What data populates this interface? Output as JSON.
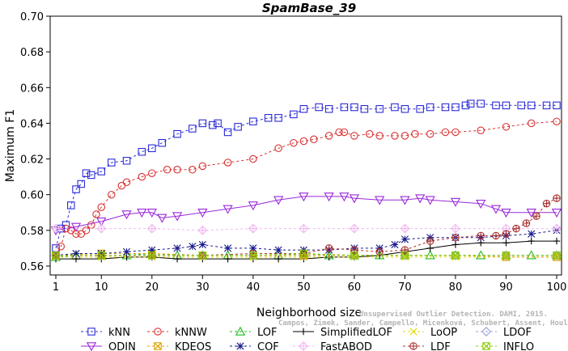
{
  "chart_data": {
    "type": "line",
    "title": "SpamBase_39",
    "xlabel": "Neighborhood size",
    "ylabel": "Maximum F1",
    "xlim": [
      1,
      100
    ],
    "ylim": [
      0.555,
      0.7
    ],
    "x_ticks": [
      1,
      10,
      20,
      30,
      40,
      50,
      60,
      70,
      80,
      90,
      100
    ],
    "y_ticks": [
      0.56,
      0.58,
      0.6,
      0.62,
      0.64,
      0.66,
      0.68,
      0.7
    ],
    "y_tick_labels": [
      "0.56",
      "0.58",
      "0.60",
      "0.62",
      "0.64",
      "0.66",
      "0.68",
      "0.70"
    ],
    "grid": false,
    "legend_position": "bottom",
    "watermark": [
      "Unsupervised Outlier Detection. DAMI, 2015.",
      "Campos, Zimek, Sander, Campello, Micenková, Schubert, Assent, Houle"
    ],
    "series": [
      {
        "name": "kNN",
        "color": "#2b2bd9",
        "marker": "square",
        "dash": "3,3",
        "x": [
          1,
          2,
          3,
          4,
          5,
          6,
          7,
          8,
          10,
          12,
          15,
          18,
          20,
          22,
          25,
          28,
          30,
          32,
          33,
          35,
          37,
          40,
          43,
          45,
          48,
          50,
          53,
          55,
          58,
          60,
          62,
          65,
          68,
          70,
          73,
          75,
          78,
          80,
          82,
          83,
          85,
          88,
          90,
          93,
          95,
          98,
          100
        ],
        "y": [
          0.57,
          0.581,
          0.583,
          0.594,
          0.603,
          0.606,
          0.612,
          0.611,
          0.613,
          0.618,
          0.619,
          0.624,
          0.626,
          0.629,
          0.634,
          0.637,
          0.64,
          0.639,
          0.64,
          0.635,
          0.638,
          0.641,
          0.643,
          0.643,
          0.645,
          0.648,
          0.649,
          0.648,
          0.649,
          0.649,
          0.648,
          0.648,
          0.649,
          0.648,
          0.648,
          0.649,
          0.649,
          0.649,
          0.65,
          0.651,
          0.651,
          0.65,
          0.65,
          0.65,
          0.65,
          0.65,
          0.65
        ]
      },
      {
        "name": "kNNW",
        "color": "#d93030",
        "marker": "circle",
        "dash": "3,3",
        "x": [
          1,
          2,
          3,
          4,
          5,
          6,
          7,
          8,
          9,
          10,
          12,
          14,
          15,
          18,
          20,
          23,
          25,
          28,
          30,
          35,
          40,
          45,
          48,
          50,
          52,
          55,
          57,
          58,
          60,
          63,
          65,
          68,
          70,
          72,
          75,
          78,
          80,
          85,
          90,
          95,
          100
        ],
        "y": [
          0.566,
          0.571,
          0.581,
          0.58,
          0.578,
          0.578,
          0.58,
          0.583,
          0.589,
          0.593,
          0.6,
          0.605,
          0.607,
          0.61,
          0.612,
          0.614,
          0.614,
          0.614,
          0.616,
          0.618,
          0.62,
          0.626,
          0.629,
          0.63,
          0.631,
          0.633,
          0.635,
          0.635,
          0.633,
          0.634,
          0.633,
          0.633,
          0.633,
          0.634,
          0.634,
          0.635,
          0.635,
          0.636,
          0.638,
          0.64,
          0.641
        ]
      },
      {
        "name": "LOF",
        "color": "#22bb22",
        "marker": "triangle",
        "dash": "3,3",
        "x": [
          1,
          5,
          10,
          15,
          20,
          25,
          30,
          35,
          40,
          45,
          50,
          55,
          60,
          65,
          70,
          75,
          80,
          85,
          90,
          95,
          100
        ],
        "y": [
          0.565,
          0.566,
          0.566,
          0.566,
          0.567,
          0.566,
          0.566,
          0.566,
          0.566,
          0.566,
          0.567,
          0.566,
          0.566,
          0.566,
          0.566,
          0.566,
          0.566,
          0.566,
          0.566,
          0.566,
          0.566
        ]
      },
      {
        "name": "SimplifiedLOF",
        "color": "#000000",
        "marker": "plus",
        "dash": "",
        "x": [
          1,
          5,
          10,
          15,
          20,
          25,
          30,
          35,
          40,
          45,
          50,
          55,
          60,
          65,
          70,
          75,
          80,
          85,
          90,
          95,
          100
        ],
        "y": [
          0.564,
          0.564,
          0.564,
          0.565,
          0.565,
          0.564,
          0.564,
          0.564,
          0.564,
          0.564,
          0.564,
          0.565,
          0.565,
          0.566,
          0.568,
          0.57,
          0.572,
          0.573,
          0.573,
          0.574,
          0.574
        ]
      },
      {
        "name": "LoOP",
        "color": "#e0d800",
        "marker": "cross",
        "dash": "3,3",
        "x": [
          1,
          10,
          20,
          30,
          40,
          50,
          60,
          70,
          80,
          90,
          100
        ],
        "y": [
          0.565,
          0.565,
          0.565,
          0.565,
          0.565,
          0.565,
          0.565,
          0.565,
          0.565,
          0.565,
          0.565
        ]
      },
      {
        "name": "LDOF",
        "color": "#9aa0d8",
        "marker": "diamond",
        "dash": "3,3",
        "x": [
          1,
          10,
          20,
          30,
          40,
          50,
          60,
          70,
          80,
          90,
          100
        ],
        "y": [
          0.566,
          0.566,
          0.566,
          0.566,
          0.566,
          0.566,
          0.566,
          0.566,
          0.566,
          0.566,
          0.566
        ]
      },
      {
        "name": "ODIN",
        "color": "#9a2ad9",
        "marker": "triangle-down",
        "dash": "",
        "x": [
          1,
          5,
          10,
          15,
          18,
          20,
          22,
          25,
          30,
          35,
          40,
          45,
          50,
          55,
          58,
          60,
          65,
          70,
          73,
          75,
          80,
          85,
          88,
          90,
          95,
          100
        ],
        "y": [
          0.58,
          0.582,
          0.585,
          0.589,
          0.59,
          0.59,
          0.587,
          0.588,
          0.59,
          0.592,
          0.594,
          0.597,
          0.599,
          0.599,
          0.599,
          0.598,
          0.597,
          0.597,
          0.598,
          0.597,
          0.596,
          0.595,
          0.592,
          0.59,
          0.59,
          0.59
        ]
      },
      {
        "name": "KDEOS",
        "color": "#e0a000",
        "marker": "box-x",
        "dash": "3,3",
        "x": [
          1,
          10,
          20,
          30,
          40,
          50,
          60,
          70,
          80,
          90,
          100
        ],
        "y": [
          0.566,
          0.567,
          0.567,
          0.566,
          0.566,
          0.566,
          0.566,
          0.566,
          0.566,
          0.565,
          0.565
        ]
      },
      {
        "name": "COF",
        "color": "#1a1a8c",
        "marker": "asterisk",
        "dash": "3,3",
        "x": [
          1,
          5,
          10,
          15,
          20,
          25,
          28,
          30,
          35,
          40,
          45,
          50,
          55,
          60,
          65,
          68,
          70,
          75,
          80,
          85,
          90,
          95,
          100
        ],
        "y": [
          0.566,
          0.567,
          0.567,
          0.568,
          0.569,
          0.57,
          0.571,
          0.572,
          0.57,
          0.57,
          0.569,
          0.569,
          0.569,
          0.57,
          0.57,
          0.572,
          0.575,
          0.576,
          0.576,
          0.576,
          0.577,
          0.578,
          0.58
        ]
      },
      {
        "name": "FastABOD",
        "color": "#f0b8f0",
        "marker": "diamond-plus",
        "dash": "3,3",
        "x": [
          1,
          10,
          20,
          30,
          40,
          50,
          60,
          70,
          80,
          90,
          100
        ],
        "y": [
          0.581,
          0.581,
          0.581,
          0.58,
          0.581,
          0.581,
          0.581,
          0.581,
          0.581,
          0.581,
          0.581
        ]
      },
      {
        "name": "LDF",
        "color": "#a83232",
        "marker": "circle-plus",
        "dash": "3,3",
        "x": [
          1,
          10,
          20,
          30,
          40,
          50,
          55,
          60,
          65,
          70,
          75,
          80,
          85,
          88,
          90,
          92,
          94,
          96,
          98,
          100
        ],
        "y": [
          0.566,
          0.566,
          0.566,
          0.566,
          0.567,
          0.567,
          0.57,
          0.569,
          0.568,
          0.569,
          0.574,
          0.576,
          0.577,
          0.577,
          0.578,
          0.581,
          0.584,
          0.588,
          0.595,
          0.598
        ]
      },
      {
        "name": "INFLO",
        "color": "#88cc00",
        "marker": "box-x",
        "dash": "3,3",
        "x": [
          1,
          10,
          20,
          30,
          40,
          50,
          60,
          70,
          80,
          90,
          100
        ],
        "y": [
          0.566,
          0.566,
          0.566,
          0.566,
          0.566,
          0.567,
          0.566,
          0.566,
          0.566,
          0.566,
          0.566
        ]
      }
    ]
  }
}
